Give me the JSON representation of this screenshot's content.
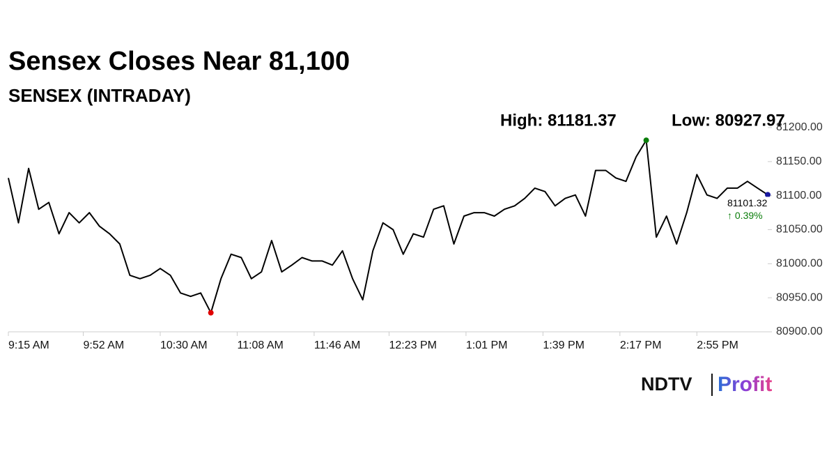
{
  "chart_data": {
    "type": "line",
    "title": "Sensex Closes Near 81,100",
    "subtitle": "SENSEX (INTRADAY)",
    "x": [
      "9:15 AM",
      "9:20 AM",
      "9:25 AM",
      "9:30 AM",
      "9:35 AM",
      "9:40 AM",
      "9:45 AM",
      "9:50 AM",
      "9:55 AM",
      "10:00 AM",
      "10:05 AM",
      "10:10 AM",
      "10:15 AM",
      "10:20 AM",
      "10:25 AM",
      "10:30 AM",
      "10:35 AM",
      "10:40 AM",
      "10:45 AM",
      "10:50 AM",
      "10:55 AM",
      "11:00 AM",
      "11:05 AM",
      "11:10 AM",
      "11:15 AM",
      "11:20 AM",
      "11:25 AM",
      "11:30 AM",
      "11:35 AM",
      "11:40 AM",
      "11:45 AM",
      "11:50 AM",
      "11:55 AM",
      "12:00 PM",
      "12:05 PM",
      "12:10 PM",
      "12:15 PM",
      "12:20 PM",
      "12:25 PM",
      "12:30 PM",
      "12:35 PM",
      "12:40 PM",
      "12:45 PM",
      "12:50 PM",
      "12:55 PM",
      "1:00 PM",
      "1:05 PM",
      "1:10 PM",
      "1:15 PM",
      "1:20 PM",
      "1:25 PM",
      "1:30 PM",
      "1:35 PM",
      "1:40 PM",
      "1:45 PM",
      "1:50 PM",
      "1:55 PM",
      "2:00 PM",
      "2:05 PM",
      "2:10 PM",
      "2:15 PM",
      "2:20 PM",
      "2:25 PM",
      "2:30 PM",
      "2:35 PM",
      "2:40 PM",
      "2:45 PM",
      "2:50 PM",
      "2:55 PM",
      "3:00 PM",
      "3:05 PM",
      "3:10 PM",
      "3:15 PM",
      "3:20 PM",
      "3:25 PM",
      "3:30 PM"
    ],
    "series": [
      {
        "name": "SENSEX",
        "color": "#000000",
        "values": [
          81126,
          81060,
          81140,
          81080,
          81090,
          81044,
          81075,
          81060,
          81075,
          81055,
          81044,
          81029,
          80983,
          80978,
          80983,
          80993,
          80983,
          80957,
          80952,
          80957,
          80928,
          80978,
          81014,
          81009,
          80978,
          80988,
          81034,
          80988,
          80998,
          81009,
          81004,
          81004,
          80998,
          81019,
          80978,
          80947,
          81019,
          81060,
          81050,
          81014,
          81044,
          81039,
          81080,
          81085,
          81029,
          81070,
          81075,
          81075,
          81070,
          81080,
          81085,
          81096,
          81111,
          81106,
          81085,
          81096,
          81101,
          81070,
          81137,
          81137,
          81126,
          81121,
          81157,
          81181.37,
          81039,
          81070,
          81029,
          81075,
          81131,
          81101,
          81096,
          81111,
          81111,
          81121,
          81111,
          81101.32
        ]
      }
    ],
    "xticks": [
      "9:15 AM",
      "9:52 AM",
      "10:30 AM",
      "11:08 AM",
      "11:46 AM",
      "12:23 PM",
      "1:01 PM",
      "1:39 PM",
      "2:17 PM",
      "2:55 PM"
    ],
    "ylim": [
      80900,
      81200
    ],
    "yticks": [
      {
        "value": 80900,
        "label": "80900.00"
      },
      {
        "value": 80950,
        "label": "80950.00"
      },
      {
        "value": 81000,
        "label": "81000.00"
      },
      {
        "value": 81050,
        "label": "81050.00"
      },
      {
        "value": 81100,
        "label": "81100.00"
      },
      {
        "value": 81150,
        "label": "81150.00"
      },
      {
        "value": 81200,
        "label": "81200.00"
      }
    ],
    "grid": false,
    "high": {
      "label": "High: 81181.37",
      "value": 81181.37,
      "x": "2:30 PM",
      "color": "#0a7d0a"
    },
    "low": {
      "label": "Low: 80927.97",
      "value": 80927.97,
      "x": "10:55 AM",
      "color": "#e00000"
    },
    "last": {
      "value": 81101.32,
      "x": "3:30 PM",
      "color": "#1a1aa0"
    },
    "change": {
      "value": 0.39,
      "label": "↑ 0.39%",
      "color": "#0a7d0a"
    },
    "logo": {
      "left": "NDTV",
      "right": "Profit"
    }
  }
}
